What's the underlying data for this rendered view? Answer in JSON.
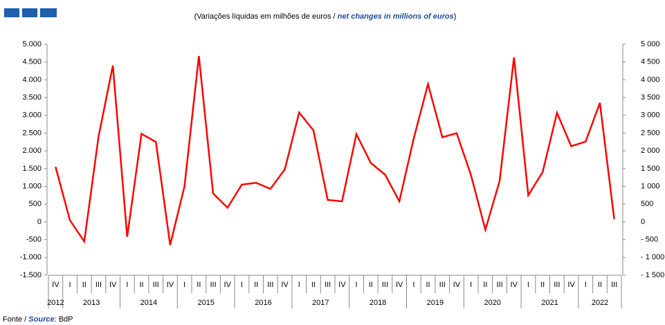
{
  "chart_data": {
    "type": "line",
    "subtitle": [
      "(Variações líquidas em milhões de euros / ",
      "net changes in millions of euros",
      ")"
    ],
    "footer": [
      "Fonte / ",
      "Source",
      ": BdP"
    ],
    "categories": [
      "IV",
      "I",
      "II",
      "III",
      "IV",
      "I",
      "II",
      "III",
      "IV",
      "I",
      "II",
      "III",
      "IV",
      "I",
      "II",
      "III",
      "IV",
      "I",
      "II",
      "III",
      "IV",
      "I",
      "II",
      "III",
      "IV",
      "I",
      "II",
      "III",
      "IV",
      "I",
      "II",
      "III",
      "IV",
      "I",
      "II",
      "III",
      "IV",
      "I",
      "II",
      "III"
    ],
    "years": [
      "2012",
      "2013",
      "2014",
      "2015",
      "2016",
      "2017",
      "2018",
      "2019",
      "2020",
      "2021",
      "2022"
    ],
    "series": [
      {
        "color": "#ff0000",
        "values": [
          1550,
          50,
          -550,
          2400,
          4400,
          -420,
          2480,
          2250,
          -650,
          1000,
          4670,
          800,
          400,
          1050,
          1100,
          930,
          1480,
          3080,
          2580,
          620,
          580,
          2470,
          1660,
          1330,
          580,
          2350,
          3880,
          2380,
          2500,
          1320,
          -220,
          1150,
          4630,
          750,
          1400,
          3070,
          2130,
          2260,
          3350,
          80
        ]
      }
    ],
    "ylim": [
      -1500,
      5000
    ],
    "yticks": [
      {
        "value": 5000,
        "label": "5.000"
      },
      {
        "value": 4500,
        "label": "4.500"
      },
      {
        "value": 4000,
        "label": "4.000"
      },
      {
        "value": 3500,
        "label": "3.500"
      },
      {
        "value": 3000,
        "label": "3.000"
      },
      {
        "value": 2500,
        "label": "2.500"
      },
      {
        "value": 2000,
        "label": "2.000"
      },
      {
        "value": 1500,
        "label": "1.500"
      },
      {
        "value": 1000,
        "label": "1.000"
      },
      500,
      0,
      -500,
      {
        "value": -1000,
        "label": "-1.000"
      },
      {
        "value": -1500,
        "label": "-1.500"
      }
    ],
    "y2lim": [
      -1500,
      5000
    ],
    "y2ticks": [
      {
        "value": 5000,
        "label": "5 000"
      },
      {
        "value": 4500,
        "label": "4 500"
      },
      {
        "value": 4000,
        "label": "4 000"
      },
      {
        "value": 3500,
        "label": "3 500"
      },
      {
        "value": 3000,
        "label": "3 000"
      },
      {
        "value": 2500,
        "label": "2 500"
      },
      {
        "value": 2000,
        "label": "2 000"
      },
      {
        "value": 1500,
        "label": "1 500"
      },
      {
        "value": 1000,
        "label": "1 000"
      },
      500,
      0,
      {
        "value": -500,
        "label": "- 500"
      },
      {
        "value": -1000,
        "label": "- 1 000"
      },
      {
        "value": -1500,
        "label": "- 1 500"
      }
    ]
  }
}
